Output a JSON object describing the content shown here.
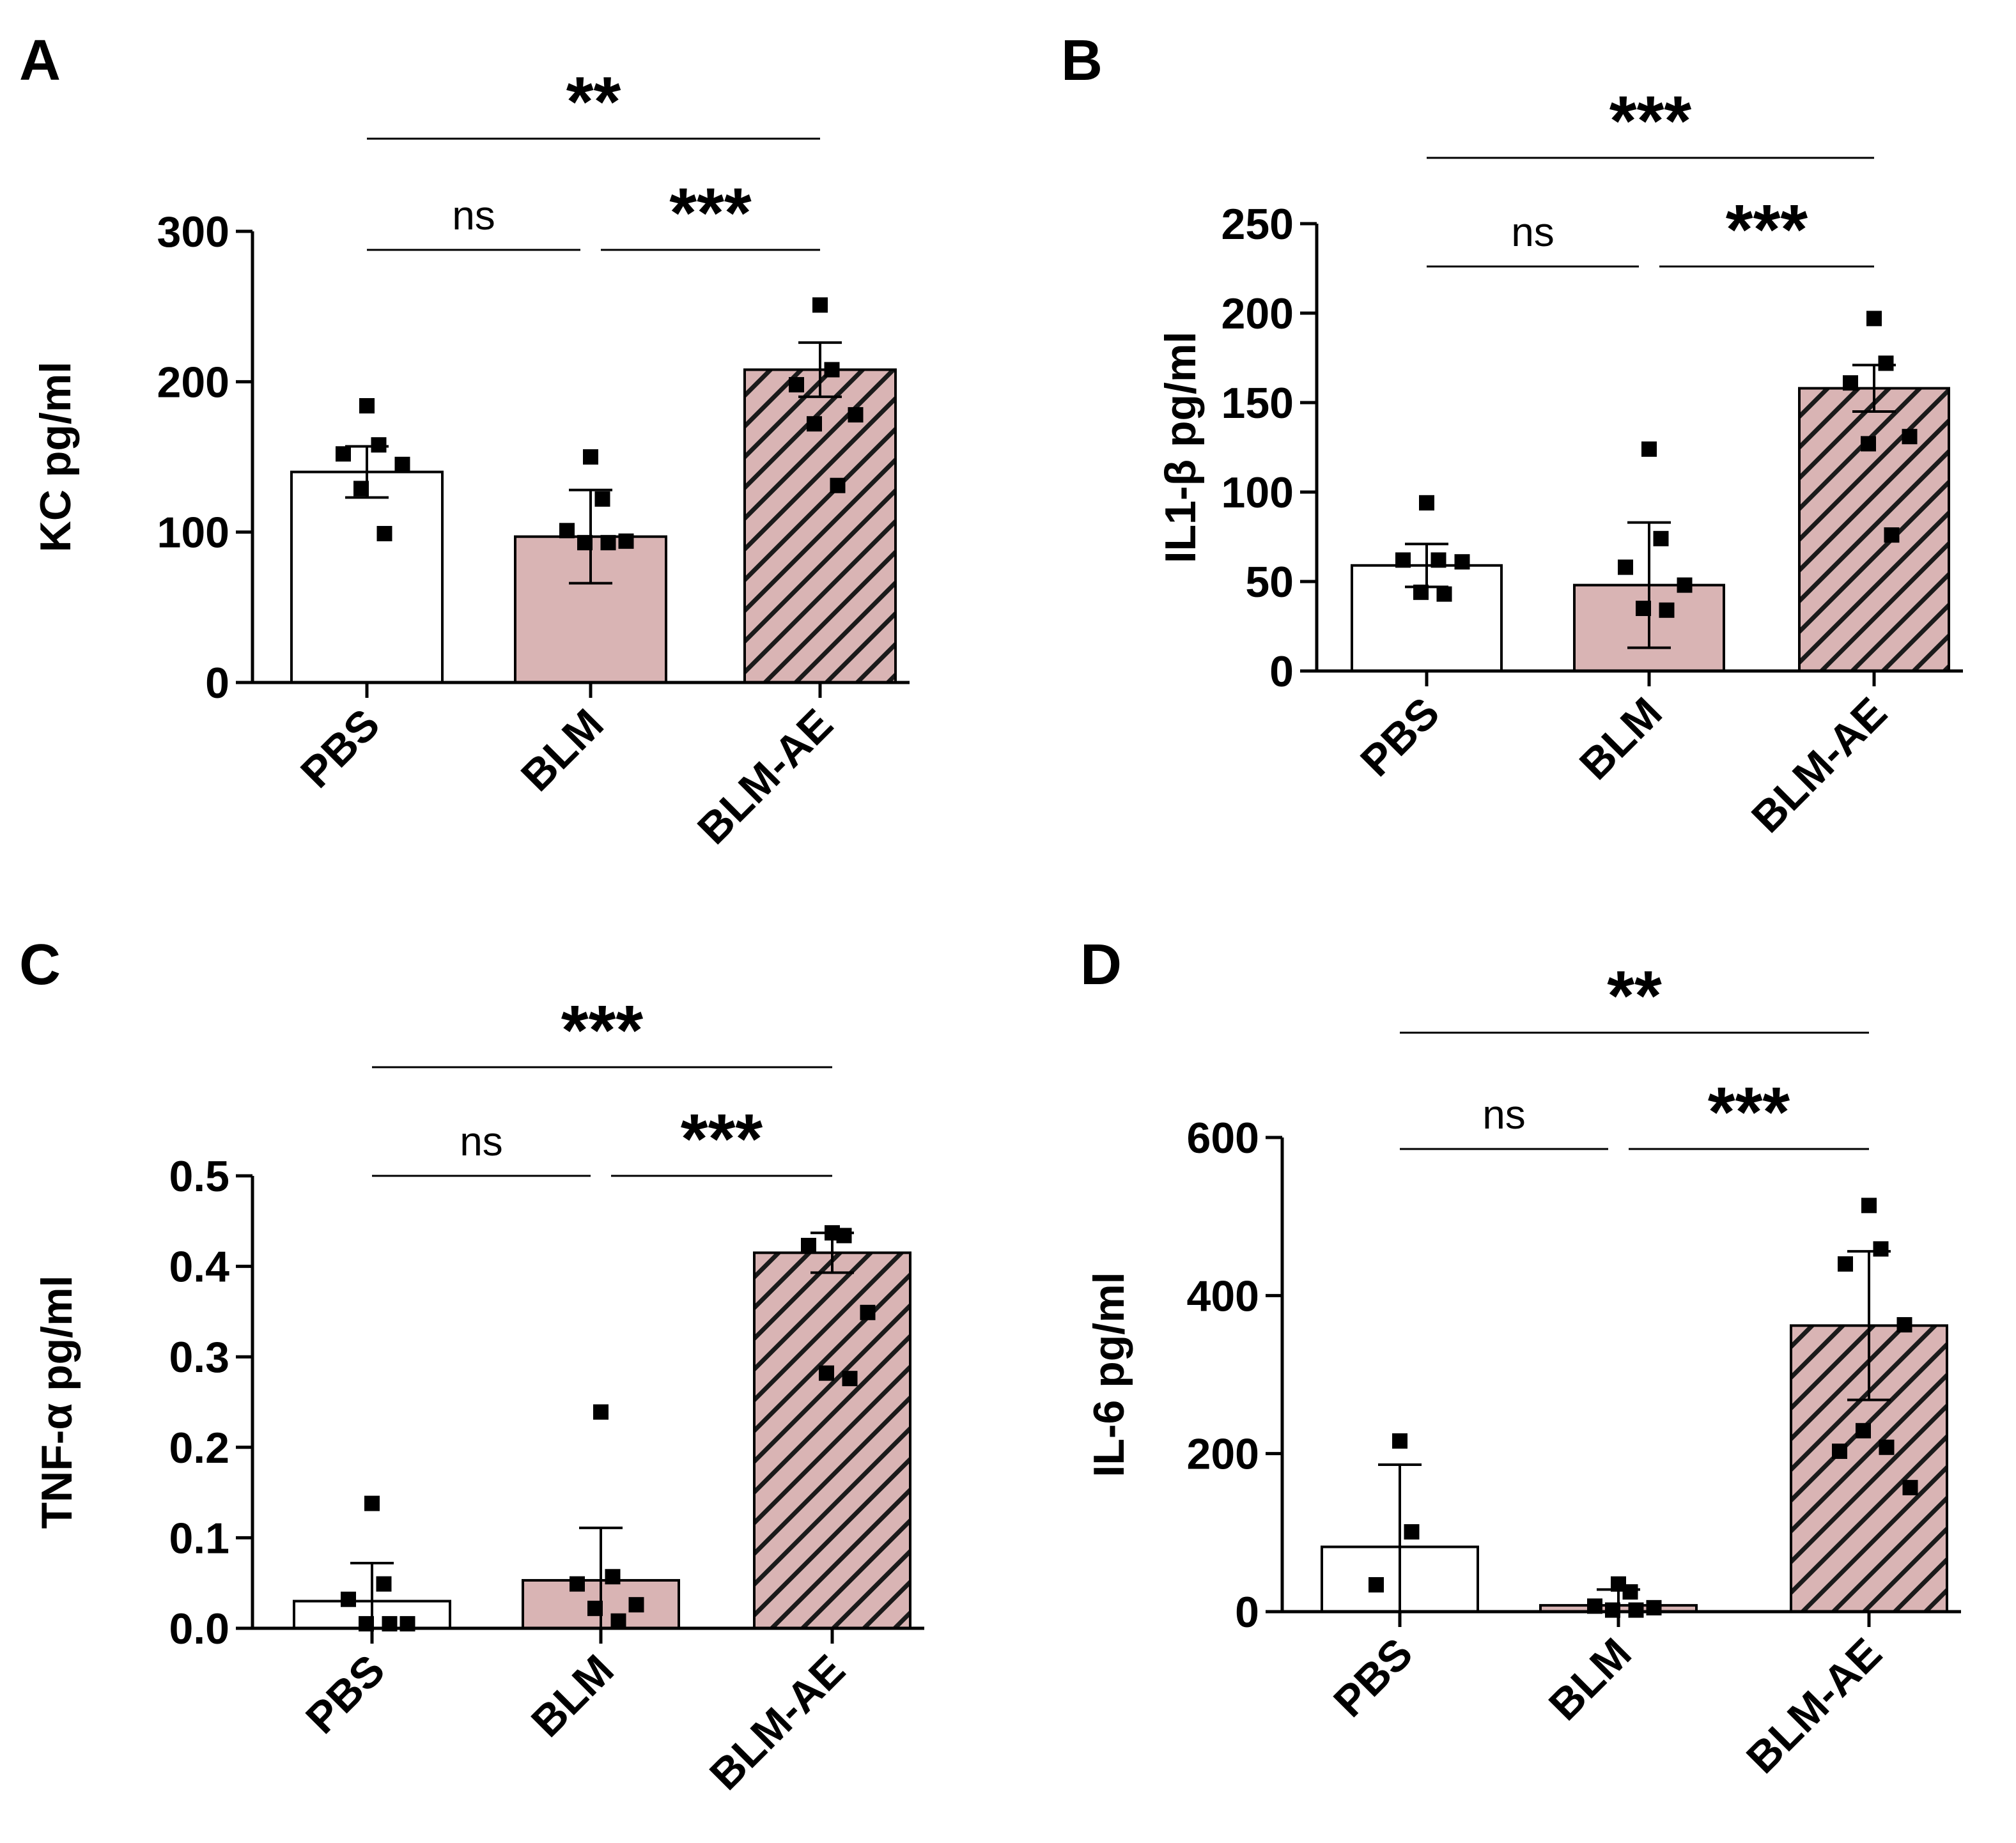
{
  "colors": {
    "bar_pbs": "#ffffff",
    "bar_blm": "#d9b4b4",
    "hatch_line": "#1a1a1a",
    "axis": "#000000"
  },
  "chart_data": [
    {
      "panel": "A",
      "type": "bar",
      "ylabel": "KC pg/ml",
      "ylim": [
        0,
        300
      ],
      "yticks": [
        0,
        100,
        200,
        300
      ],
      "ytick_labels": [
        "0",
        "100",
        "200",
        "300"
      ],
      "categories": [
        "PBS",
        "BLM",
        "BLM-AE"
      ],
      "fills": [
        "white",
        "pink",
        "pink-hatched"
      ],
      "means": [
        140,
        97,
        208
      ],
      "sd": [
        17,
        31,
        18
      ],
      "points": [
        [
          184,
          158,
          152,
          145,
          129,
          99
        ],
        [
          150,
          122,
          101,
          94,
          93,
          93
        ],
        [
          251,
          208,
          198,
          178,
          172,
          131
        ]
      ],
      "brackets": [
        {
          "from": 0,
          "to": 2,
          "label": "**",
          "level": 2
        },
        {
          "from": 0,
          "to": 1,
          "label": "ns",
          "level": 1
        },
        {
          "from": 1,
          "to": 2,
          "label": "***",
          "level": 1
        }
      ]
    },
    {
      "panel": "B",
      "type": "bar",
      "ylabel": "IL1-β pg/ml",
      "ylim": [
        0,
        250
      ],
      "yticks": [
        0,
        50,
        100,
        150,
        200,
        250
      ],
      "ytick_labels": [
        "0",
        "50",
        "100",
        "150",
        "200",
        "250"
      ],
      "categories": [
        "PBS",
        "BLM",
        "BLM-AE"
      ],
      "fills": [
        "white",
        "pink",
        "pink-hatched"
      ],
      "means": [
        59,
        48,
        158
      ],
      "sd": [
        12,
        35,
        13
      ],
      "points": [
        [
          94,
          62,
          62,
          61,
          44,
          43
        ],
        [
          124,
          74,
          58,
          48,
          35,
          34
        ],
        [
          197,
          172,
          161,
          131,
          127,
          76
        ]
      ],
      "brackets": [
        {
          "from": 0,
          "to": 2,
          "label": "***",
          "level": 2
        },
        {
          "from": 0,
          "to": 1,
          "label": "ns",
          "level": 1
        },
        {
          "from": 1,
          "to": 2,
          "label": "***",
          "level": 1
        }
      ]
    },
    {
      "panel": "C",
      "type": "bar",
      "ylabel": "TNF-α pg/ml",
      "ylim": [
        0,
        0.5
      ],
      "yticks": [
        0,
        0.1,
        0.2,
        0.3,
        0.4,
        0.5
      ],
      "ytick_labels": [
        "0.0",
        "0.1",
        "0.2",
        "0.3",
        "0.4",
        "0.5"
      ],
      "categories": [
        "PBS",
        "BLM",
        "BLM-AE"
      ],
      "fills": [
        "white",
        "pink",
        "pink-hatched"
      ],
      "means": [
        0.03,
        0.053,
        0.415
      ],
      "sd": [
        0.042,
        0.058,
        0.022
      ],
      "points": [
        [
          0.138,
          0.049,
          0.032,
          0.005,
          0.005,
          0.005
        ],
        [
          0.239,
          0.057,
          0.049,
          0.026,
          0.022,
          0.008
        ],
        [
          0.437,
          0.434,
          0.423,
          0.349,
          0.282,
          0.276
        ]
      ],
      "brackets": [
        {
          "from": 0,
          "to": 2,
          "label": "***",
          "level": 2
        },
        {
          "from": 0,
          "to": 1,
          "label": "ns",
          "level": 1
        },
        {
          "from": 1,
          "to": 2,
          "label": "***",
          "level": 1
        }
      ]
    },
    {
      "panel": "D",
      "type": "bar",
      "ylabel": "IL-6 pg/ml",
      "ylim": [
        0,
        600
      ],
      "yticks": [
        0,
        200,
        400,
        600
      ],
      "ytick_labels": [
        "0",
        "200",
        "400",
        "600"
      ],
      "categories": [
        "PBS",
        "BLM",
        "BLM-AE"
      ],
      "fills": [
        "white",
        "pink",
        "pink-hatched"
      ],
      "means": [
        82,
        8,
        362
      ],
      "sd": [
        104,
        20,
        94
      ],
      "points": [
        [
          216,
          101,
          34
        ],
        [
          35,
          25,
          7,
          5,
          2,
          2
        ],
        [
          514,
          459,
          440,
          363,
          229,
          208,
          203,
          157
        ]
      ],
      "brackets": [
        {
          "from": 0,
          "to": 2,
          "label": "**",
          "level": 2
        },
        {
          "from": 0,
          "to": 1,
          "label": "ns",
          "level": 1
        },
        {
          "from": 1,
          "to": 2,
          "label": "***",
          "level": 1
        }
      ]
    }
  ]
}
